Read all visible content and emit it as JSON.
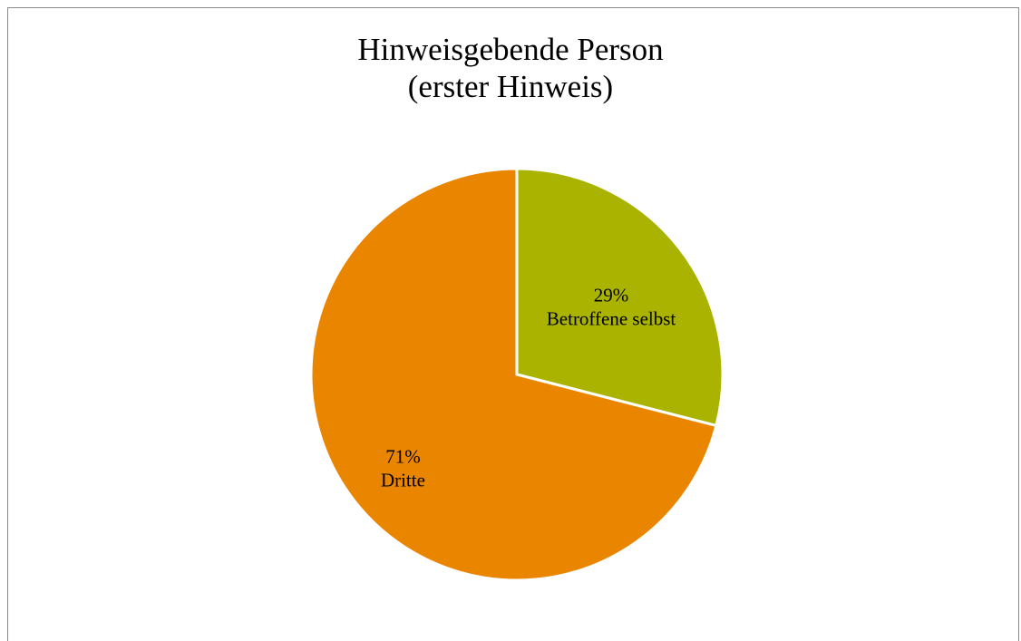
{
  "chart_data": {
    "type": "pie",
    "title_lines": [
      "Hinweisgebende Person",
      "(erster Hinweis)"
    ],
    "categories": [
      "Betroffene selbst",
      "Dritte"
    ],
    "values": [
      29,
      71
    ],
    "value_labels": [
      "29%",
      "71%"
    ],
    "colors": [
      "#aab400",
      "#ea8500"
    ],
    "legend": "none",
    "start": "12 o'clock, clockwise"
  }
}
